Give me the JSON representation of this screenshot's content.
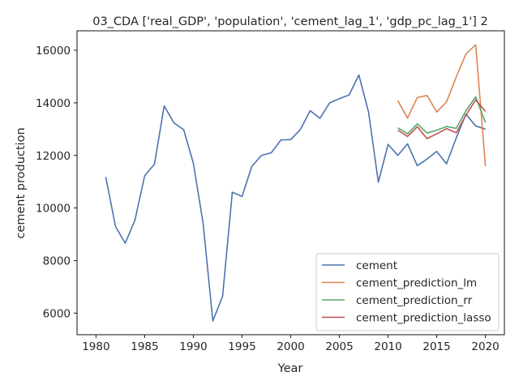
{
  "chart_data": {
    "type": "line",
    "title": "03_CDA ['real_GDP', 'population', 'cement_lag_1', 'gdp_pc_lag_1'] 2",
    "xlabel": "Year",
    "ylabel": "cement production",
    "xlim": [
      1978.05,
      2021.95
    ],
    "ylim": [
      5180,
      16740
    ],
    "xticks": [
      1980,
      1985,
      1990,
      1995,
      2000,
      2005,
      2010,
      2015,
      2020
    ],
    "yticks": [
      6000,
      8000,
      10000,
      12000,
      14000,
      16000
    ],
    "grid": false,
    "legend_position": "lower right",
    "series": [
      {
        "name": "cement",
        "color": "#4c72b0",
        "x": [
          1981,
          1982,
          1983,
          1984,
          1985,
          1986,
          1987,
          1988,
          1989,
          1990,
          1991,
          1992,
          1993,
          1994,
          1995,
          1996,
          1997,
          1998,
          1999,
          2000,
          2001,
          2002,
          2003,
          2004,
          2005,
          2006,
          2007,
          2008,
          2009,
          2010,
          2011,
          2012,
          2013,
          2014,
          2015,
          2016,
          2017,
          2018,
          2019,
          2020
        ],
        "y": [
          11180,
          9300,
          8660,
          9540,
          11230,
          11660,
          13880,
          13240,
          12980,
          11700,
          9420,
          5700,
          6640,
          10600,
          10440,
          11580,
          12000,
          12100,
          12590,
          12600,
          12990,
          13700,
          13410,
          14000,
          14160,
          14300,
          15060,
          13640,
          10980,
          12420,
          12000,
          12440,
          11610,
          11860,
          12150,
          11680,
          12660,
          13570,
          13120,
          13000
        ]
      },
      {
        "name": "cement_prediction_lm",
        "color": "#dd8452",
        "x": [
          2011,
          2012,
          2013,
          2014,
          2015,
          2016,
          2017,
          2018,
          2019,
          2020
        ],
        "y": [
          14080,
          13420,
          14200,
          14280,
          13650,
          14030,
          14980,
          15860,
          16210,
          11590
        ]
      },
      {
        "name": "cement_prediction_rr",
        "color": "#55a868",
        "x": [
          2011,
          2012,
          2013,
          2014,
          2015,
          2016,
          2017,
          2018,
          2019,
          2020
        ],
        "y": [
          13050,
          12820,
          13200,
          12850,
          12960,
          13100,
          13030,
          13700,
          14230,
          13250
        ]
      },
      {
        "name": "cement_prediction_lasso",
        "color": "#c44e52",
        "x": [
          2011,
          2012,
          2013,
          2014,
          2015,
          2016,
          2017,
          2018,
          2019,
          2020
        ],
        "y": [
          12960,
          12720,
          13090,
          12640,
          12820,
          13020,
          12860,
          13530,
          14110,
          13680
        ]
      }
    ]
  }
}
